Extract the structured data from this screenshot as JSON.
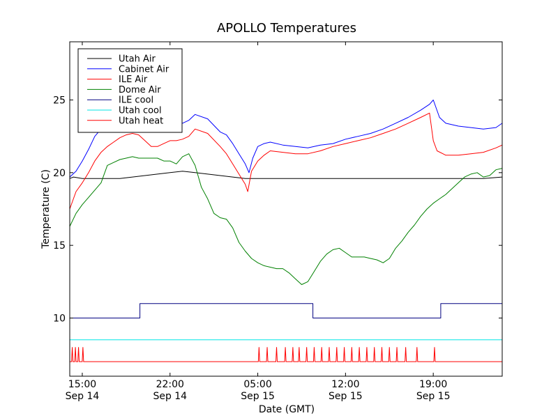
{
  "chart_data": {
    "type": "line",
    "title": "APOLLO Temperatures",
    "xlabel": "Date (GMT)",
    "ylabel": "Temperature (C)",
    "x_unit": "hours since Sep 14 14:00 GMT",
    "xlim": [
      0,
      34.5
    ],
    "ylim": [
      6,
      29
    ],
    "x_ticks": [
      {
        "x": 1,
        "time": "15:00",
        "date": "Sep 14"
      },
      {
        "x": 8,
        "time": "22:00",
        "date": "Sep 14"
      },
      {
        "x": 15,
        "time": "05:00",
        "date": "Sep 15"
      },
      {
        "x": 22,
        "time": "12:00",
        "date": "Sep 15"
      },
      {
        "x": 29,
        "time": "19:00",
        "date": "Sep 15"
      }
    ],
    "y_ticks": [
      10,
      15,
      20,
      25
    ],
    "legend_position": "upper-left",
    "series": [
      {
        "name": "Utah Air",
        "color": "#000000",
        "style": "line",
        "x": [
          0,
          0.3,
          1,
          2,
          3,
          4,
          5,
          6,
          7,
          8,
          9,
          10,
          11,
          12,
          13,
          14,
          15,
          16,
          17,
          18,
          19,
          20,
          21,
          22,
          23,
          24,
          25,
          26,
          27,
          28,
          29,
          30,
          31,
          32,
          33,
          34.5
        ],
        "y": [
          19.6,
          19.7,
          19.6,
          19.6,
          19.6,
          19.6,
          19.7,
          19.8,
          19.9,
          20.0,
          20.1,
          20.0,
          19.9,
          19.8,
          19.7,
          19.6,
          19.6,
          19.6,
          19.6,
          19.6,
          19.6,
          19.6,
          19.6,
          19.6,
          19.6,
          19.6,
          19.6,
          19.6,
          19.6,
          19.6,
          19.6,
          19.6,
          19.6,
          19.6,
          19.6,
          19.7
        ]
      },
      {
        "name": "Cabinet Air",
        "color": "#0000ff",
        "style": "line",
        "x": [
          0,
          0.5,
          1,
          1.5,
          2,
          2.5,
          3,
          3.5,
          4,
          4.5,
          5,
          5.5,
          6,
          6.5,
          7,
          7.5,
          8,
          8.5,
          9,
          9.5,
          10,
          11,
          12,
          12.5,
          13,
          13.5,
          14,
          14.3,
          14.6,
          15,
          15.5,
          16,
          17,
          18,
          19,
          20,
          21,
          22,
          23,
          24,
          25,
          26,
          27,
          28,
          28.7,
          29,
          29.5,
          30,
          31,
          32,
          33,
          34,
          34.5
        ],
        "y": [
          19.7,
          20.1,
          20.8,
          21.6,
          22.5,
          23.0,
          23.3,
          23.6,
          23.7,
          23.9,
          23.9,
          23.9,
          23.9,
          23.7,
          23.5,
          23.5,
          23.6,
          23.5,
          23.4,
          23.6,
          24.0,
          23.7,
          22.8,
          22.6,
          22.0,
          21.3,
          20.6,
          20.0,
          21.0,
          21.8,
          22.0,
          22.1,
          21.9,
          21.8,
          21.7,
          21.9,
          22.0,
          22.3,
          22.5,
          22.7,
          23.0,
          23.4,
          23.8,
          24.3,
          24.7,
          25.0,
          23.8,
          23.4,
          23.2,
          23.1,
          23.0,
          23.1,
          23.4
        ]
      },
      {
        "name": "ILE Air",
        "color": "#ff0000",
        "style": "line",
        "x": [
          0,
          0.5,
          1,
          1.5,
          2,
          2.5,
          3,
          3.5,
          4,
          4.5,
          5,
          5.5,
          6,
          6.5,
          7,
          7.5,
          8,
          8.5,
          9,
          9.5,
          10,
          11,
          12,
          12.5,
          13,
          13.5,
          14,
          14.2,
          14.5,
          15,
          15.5,
          16,
          17,
          18,
          19,
          20,
          21,
          22,
          23,
          24,
          25,
          26,
          27,
          28,
          28.7,
          29,
          29.3,
          30,
          31,
          32,
          33,
          34,
          34.5
        ],
        "y": [
          17.5,
          18.7,
          19.3,
          20.0,
          20.8,
          21.4,
          21.8,
          22.1,
          22.4,
          22.6,
          22.7,
          22.6,
          22.2,
          21.8,
          21.8,
          22.0,
          22.2,
          22.2,
          22.3,
          22.5,
          23.0,
          22.7,
          21.8,
          21.3,
          20.6,
          19.9,
          19.2,
          18.7,
          20.1,
          20.8,
          21.2,
          21.5,
          21.4,
          21.3,
          21.3,
          21.5,
          21.8,
          22.0,
          22.2,
          22.4,
          22.7,
          23.0,
          23.4,
          23.8,
          24.1,
          22.2,
          21.5,
          21.2,
          21.2,
          21.3,
          21.4,
          21.7,
          21.9
        ]
      },
      {
        "name": "Dome Air",
        "color": "#008000",
        "style": "line",
        "x": [
          0,
          0.5,
          1,
          1.5,
          2,
          2.5,
          3,
          3.5,
          4,
          4.5,
          5,
          5.5,
          6,
          6.5,
          7,
          7.5,
          8,
          8.5,
          9,
          9.5,
          10,
          10.5,
          11,
          11.5,
          12,
          12.5,
          13,
          13.5,
          14,
          14.5,
          15,
          15.5,
          16,
          16.5,
          17,
          17.5,
          18,
          18.5,
          19,
          19.5,
          20,
          20.5,
          21,
          21.5,
          22,
          22.5,
          23,
          23.5,
          24,
          24.5,
          25,
          25.5,
          26,
          26.5,
          27,
          27.5,
          28,
          28.5,
          29,
          29.5,
          30,
          30.5,
          31,
          31.5,
          32,
          32.5,
          33,
          33.5,
          34,
          34.5
        ],
        "y": [
          16.3,
          17.2,
          17.8,
          18.3,
          18.8,
          19.3,
          20.5,
          20.7,
          20.9,
          21.0,
          21.1,
          21.0,
          21.0,
          21.0,
          21.0,
          20.8,
          20.8,
          20.6,
          21.1,
          21.3,
          20.5,
          19.0,
          18.2,
          17.2,
          16.9,
          16.8,
          16.2,
          15.2,
          14.6,
          14.1,
          13.8,
          13.6,
          13.5,
          13.4,
          13.4,
          13.1,
          12.7,
          12.3,
          12.5,
          13.2,
          13.9,
          14.4,
          14.7,
          14.8,
          14.5,
          14.2,
          14.2,
          14.2,
          14.1,
          14.0,
          13.8,
          14.1,
          14.8,
          15.3,
          15.9,
          16.4,
          17.0,
          17.5,
          17.9,
          18.2,
          18.5,
          18.9,
          19.3,
          19.7,
          19.9,
          20.0,
          19.7,
          19.8,
          20.2,
          20.3
        ]
      },
      {
        "name": "ILE cool",
        "color": "#000080",
        "style": "step",
        "x": [
          0,
          5.6,
          5.6,
          19.4,
          19.4,
          29.6,
          29.6,
          34.5
        ],
        "y": [
          10,
          10,
          11,
          11,
          10,
          10,
          11,
          11
        ]
      },
      {
        "name": "Utah cool",
        "color": "#00e5e5",
        "style": "line",
        "x": [
          0,
          34.5
        ],
        "y": [
          8.5,
          8.5
        ]
      },
      {
        "name": "Utah heat",
        "color": "#ff0000",
        "style": "spikes",
        "x": [
          0,
          34.5
        ],
        "y": [
          7,
          7
        ],
        "baseline": 7,
        "spike_value": 8,
        "spikes_x": [
          0.2,
          0.45,
          0.7,
          1.05,
          15.1,
          15.75,
          16.5,
          17.2,
          17.8,
          18.3,
          18.9,
          19.5,
          20.1,
          20.7,
          21.3,
          21.9,
          22.5,
          23.1,
          23.7,
          24.3,
          24.9,
          25.5,
          26.1,
          26.8,
          27.7,
          29.1
        ]
      }
    ]
  }
}
